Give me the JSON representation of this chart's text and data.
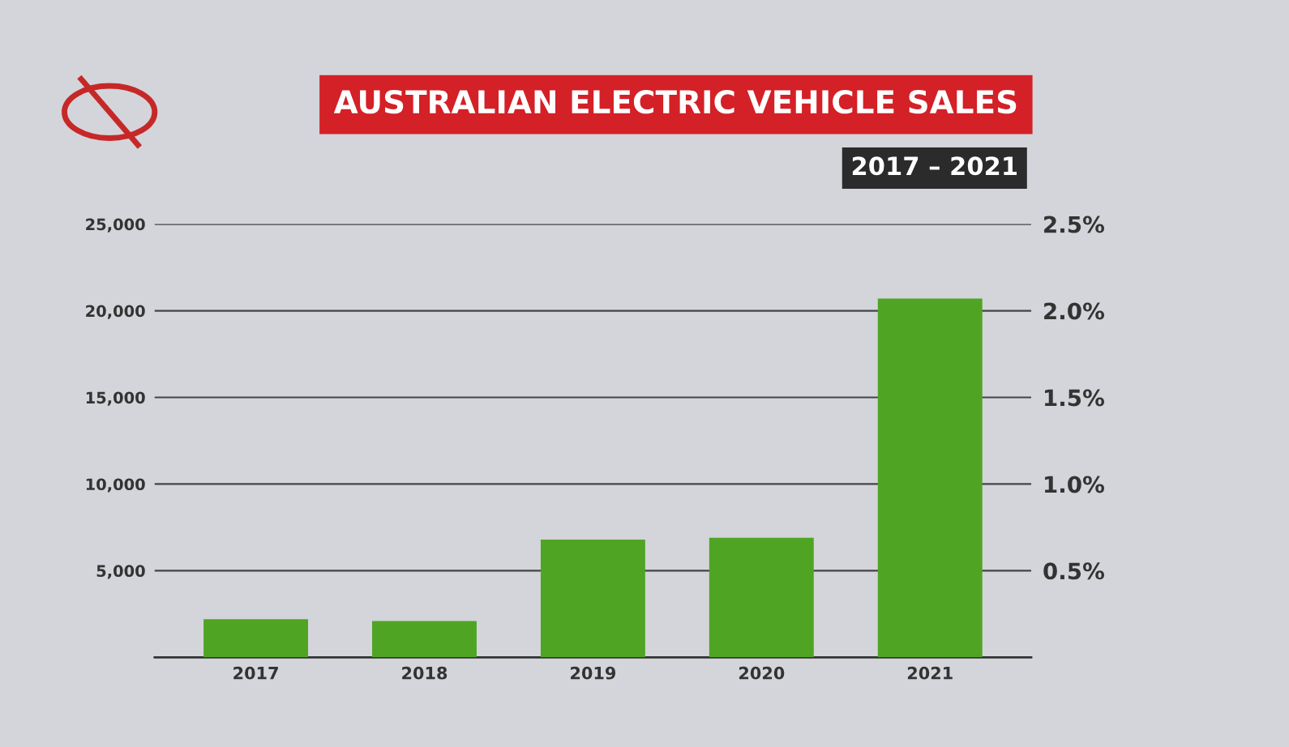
{
  "chart_data": {
    "type": "bar",
    "title": "AUSTRALIAN ELECTRIC VEHICLE SALES",
    "subtitle": "2017 – 2021",
    "categories": [
      "2017",
      "2018",
      "2019",
      "2020",
      "2021"
    ],
    "values": [
      2200,
      2100,
      6800,
      6900,
      20700
    ],
    "color": "#4fa523",
    "ylim": [
      0,
      25000
    ],
    "yticks": [
      {
        "value": 0,
        "label": null
      },
      {
        "value": 5000,
        "label": "5,000"
      },
      {
        "value": 10000,
        "label": "10,000"
      },
      {
        "value": 15000,
        "label": "15,000"
      },
      {
        "value": 20000,
        "label": "20,000"
      },
      {
        "value": 25000,
        "label": "25,000"
      }
    ],
    "y2lim": [
      0,
      2.5
    ],
    "y2ticks": [
      {
        "value": 0.5,
        "label": "0.5%"
      },
      {
        "value": 1.0,
        "label": "1.0%"
      },
      {
        "value": 1.5,
        "label": "1.5%"
      },
      {
        "value": 2.0,
        "label": "2.0%"
      },
      {
        "value": 2.5,
        "label": "2.5%"
      }
    ],
    "grid": "y"
  }
}
